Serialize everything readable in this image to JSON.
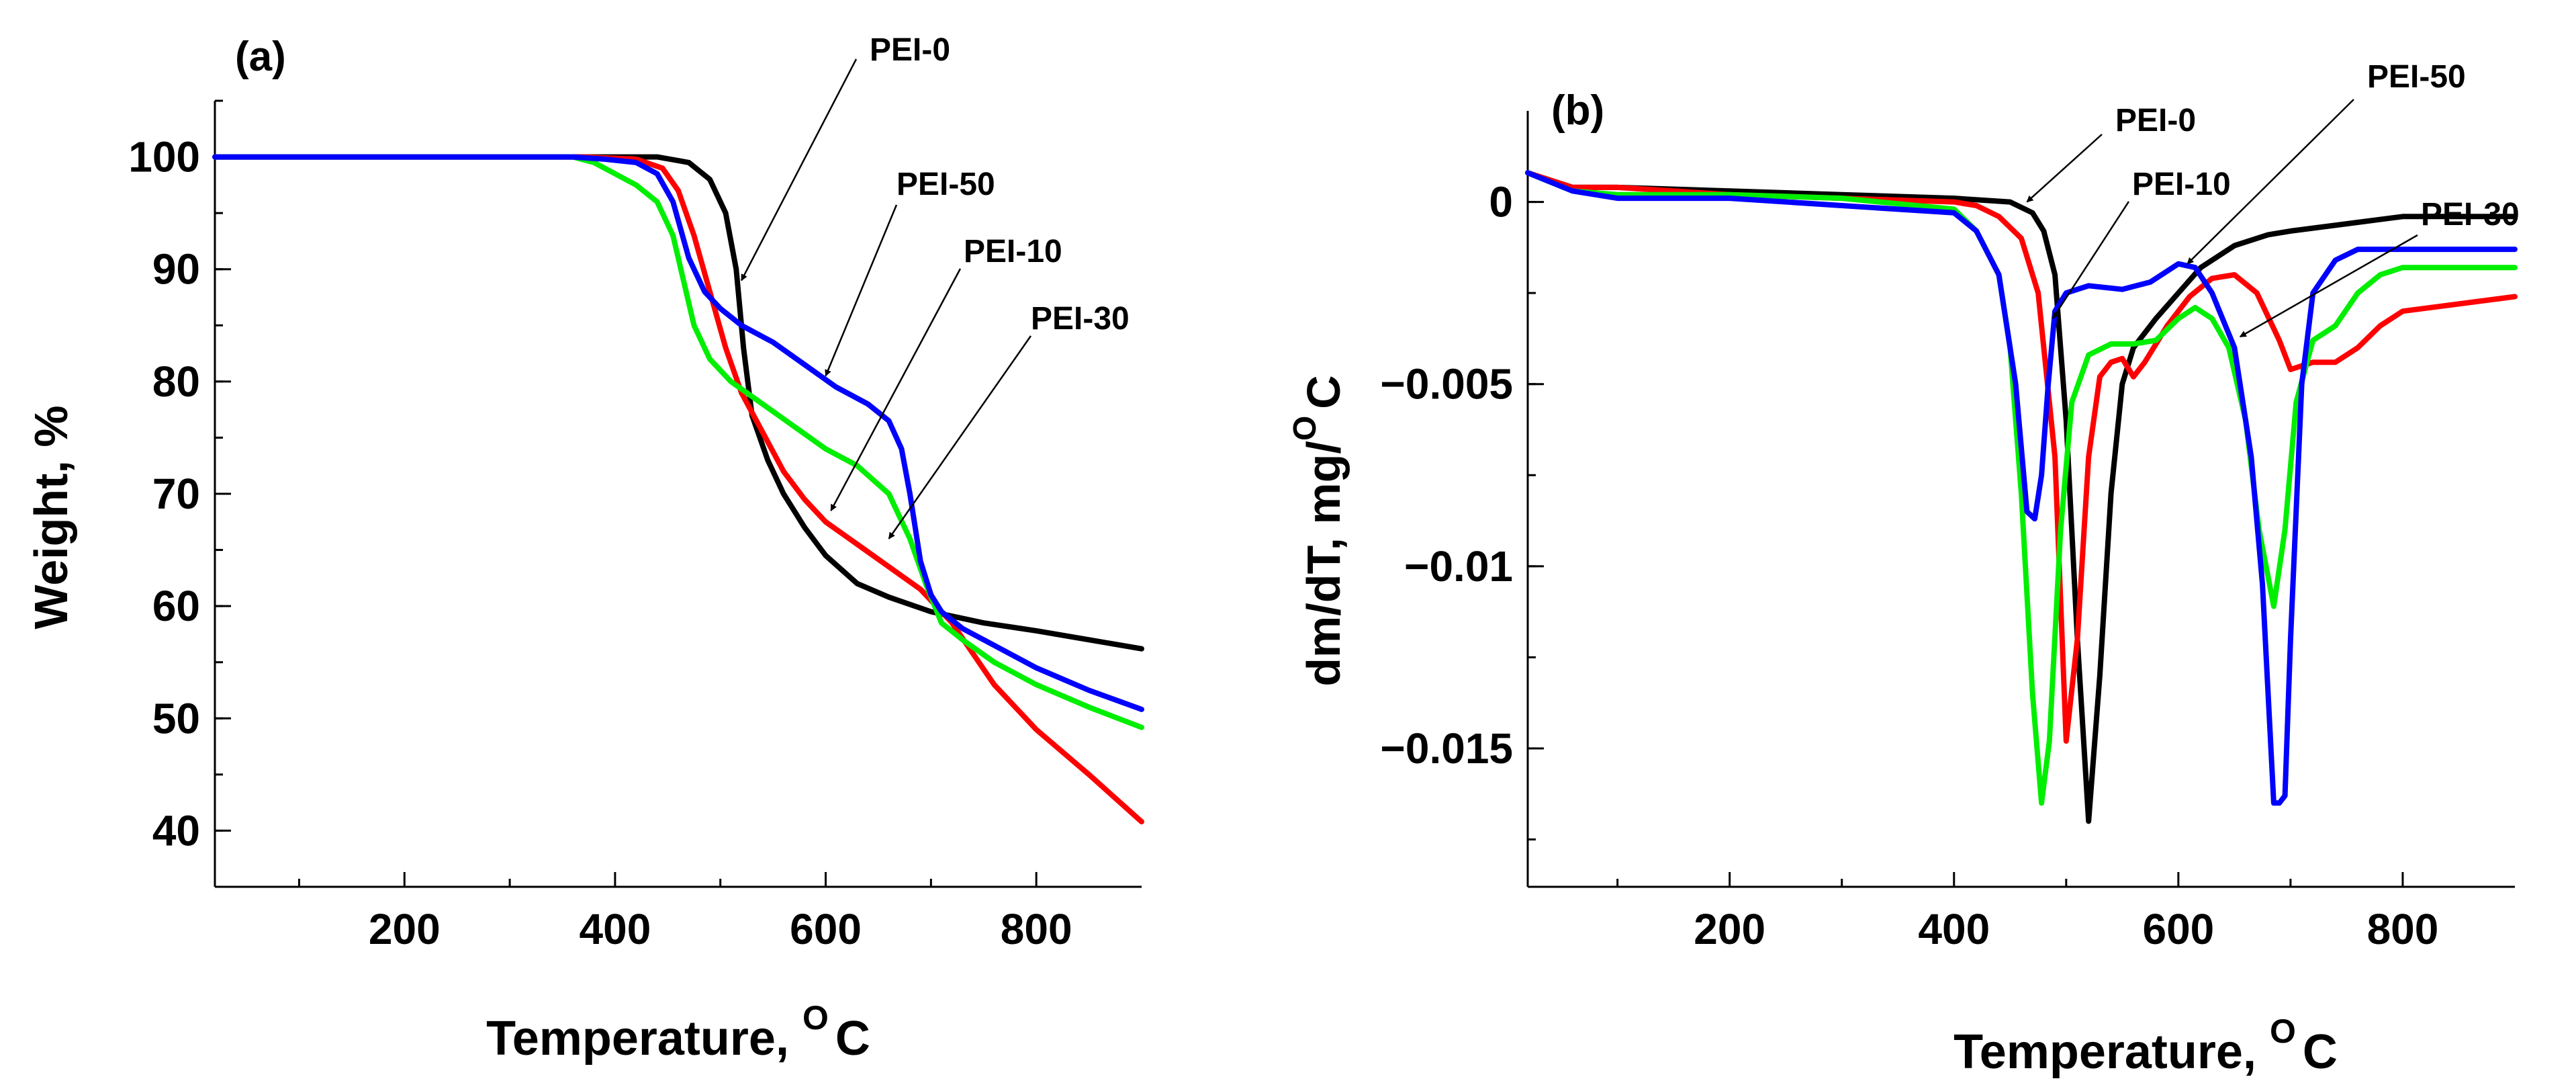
{
  "colors": {
    "PEI-0": "#000000",
    "PEI-10": "#ff0000",
    "PEI-30": "#00ee00",
    "PEI-50": "#0000ff"
  },
  "chart_data": [
    {
      "type": "line",
      "panel_label": "(a)",
      "xlabel": "Temperature, ",
      "xlabel_unit_sup": "O",
      "xlabel_unit": "C",
      "ylabel": "Weight, %",
      "xlim": [
        20,
        900
      ],
      "ylim": [
        35,
        105
      ],
      "x_ticks": [
        200,
        400,
        600,
        800
      ],
      "x_tick_labels": [
        "200",
        "400",
        "600",
        "800"
      ],
      "y_ticks": [
        40,
        50,
        60,
        70,
        80,
        90,
        100
      ],
      "y_tick_labels": [
        "40",
        "50",
        "60",
        "70",
        "80",
        "90",
        "100"
      ],
      "series": [
        {
          "name": "PEI-0",
          "x": [
            20,
            300,
            370,
            440,
            470,
            490,
            505,
            515,
            522,
            530,
            545,
            560,
            580,
            600,
            630,
            660,
            700,
            750,
            800,
            850,
            900
          ],
          "y": [
            100,
            100,
            100,
            100,
            99.5,
            98,
            95,
            90,
            83,
            77,
            73,
            70,
            67,
            64.5,
            62,
            60.8,
            59.5,
            58.5,
            57.8,
            57,
            56.2
          ]
        },
        {
          "name": "PEI-10",
          "x": [
            20,
            300,
            370,
            420,
            445,
            460,
            475,
            490,
            505,
            520,
            540,
            560,
            580,
            600,
            630,
            660,
            690,
            720,
            760,
            800,
            850,
            900
          ],
          "y": [
            100,
            100,
            100,
            99.8,
            99,
            97,
            93,
            88,
            83,
            79,
            75.5,
            72,
            69.5,
            67.5,
            65.5,
            63.5,
            61.5,
            58.5,
            53,
            49,
            45,
            40.8
          ]
        },
        {
          "name": "PEI-30",
          "x": [
            20,
            300,
            360,
            380,
            400,
            420,
            440,
            455,
            465,
            475,
            490,
            510,
            540,
            570,
            600,
            630,
            660,
            680,
            695,
            710,
            730,
            760,
            800,
            850,
            900
          ],
          "y": [
            100,
            100,
            100,
            99.5,
            98.5,
            97.5,
            96,
            93,
            89,
            85,
            82,
            80,
            78,
            76,
            74,
            72.5,
            70,
            66,
            62,
            58.5,
            57,
            55,
            53,
            51,
            49.2
          ]
        },
        {
          "name": "PEI-50",
          "x": [
            20,
            300,
            360,
            390,
            420,
            440,
            455,
            470,
            485,
            500,
            520,
            550,
            580,
            610,
            640,
            660,
            672,
            680,
            690,
            700,
            710,
            730,
            760,
            800,
            850,
            900
          ],
          "y": [
            100,
            100,
            100,
            99.8,
            99.5,
            98.5,
            96,
            91,
            88,
            86.5,
            85,
            83.5,
            81.5,
            79.5,
            78,
            76.5,
            74,
            70,
            64,
            61,
            59.5,
            58,
            56.5,
            54.5,
            52.5,
            50.8
          ]
        }
      ],
      "annotations": [
        {
          "label": "PEI-0",
          "series": "PEI-0",
          "point": [
            520,
            89
          ]
        },
        {
          "label": "PEI-50",
          "series": "PEI-50",
          "point": [
            600,
            80.5
          ]
        },
        {
          "label": "PEI-10",
          "series": "PEI-10",
          "point": [
            605,
            68.5
          ]
        },
        {
          "label": "PEI-30",
          "series": "PEI-30",
          "point": [
            660,
            66
          ]
        }
      ]
    },
    {
      "type": "line",
      "panel_label": "(b)",
      "xlabel": "Temperature, ",
      "xlabel_unit_sup": "O",
      "xlabel_unit": "C",
      "ylabel": "dm/dT, mg/",
      "ylabel_unit_sup": "O",
      "ylabel_unit": "C",
      "xlim": [
        20,
        900
      ],
      "ylim": [
        -0.0188,
        0.0025
      ],
      "x_ticks": [
        200,
        400,
        600,
        800
      ],
      "x_tick_labels": [
        "200",
        "400",
        "600",
        "800"
      ],
      "y_ticks": [
        0,
        -0.005,
        -0.01,
        -0.015
      ],
      "y_tick_labels": [
        "0",
        "−0.005",
        "−0.01",
        "−0.015"
      ],
      "series": [
        {
          "name": "PEI-0",
          "x": [
            20,
            60,
            100,
            200,
            300,
            400,
            450,
            470,
            480,
            490,
            500,
            510,
            520,
            530,
            540,
            550,
            560,
            580,
            600,
            620,
            650,
            680,
            700,
            750,
            800,
            850,
            900
          ],
          "y": [
            0.0008,
            0.0004,
            0.0004,
            0.0003,
            0.0002,
            0.0001,
            0,
            -0.0003,
            -0.0008,
            -0.002,
            -0.006,
            -0.012,
            -0.017,
            -0.013,
            -0.008,
            -0.005,
            -0.004,
            -0.0032,
            -0.0025,
            -0.0018,
            -0.0012,
            -0.0009,
            -0.0008,
            -0.0006,
            -0.0004,
            -0.0004,
            -0.0004
          ]
        },
        {
          "name": "PEI-10",
          "x": [
            20,
            60,
            100,
            200,
            300,
            400,
            420,
            440,
            460,
            475,
            490,
            500,
            510,
            520,
            530,
            540,
            550,
            560,
            570,
            590,
            610,
            630,
            650,
            670,
            690,
            700,
            710,
            720,
            740,
            760,
            780,
            800,
            850,
            900
          ],
          "y": [
            0.0008,
            0.0004,
            0.0004,
            0.0002,
            0.0001,
            0,
            -0.0001,
            -0.0004,
            -0.001,
            -0.0025,
            -0.007,
            -0.0148,
            -0.012,
            -0.007,
            -0.0048,
            -0.0044,
            -0.0043,
            -0.0048,
            -0.0044,
            -0.0034,
            -0.0026,
            -0.0021,
            -0.002,
            -0.0025,
            -0.0038,
            -0.0046,
            -0.0045,
            -0.0044,
            -0.0044,
            -0.004,
            -0.0034,
            -0.003,
            -0.0028,
            -0.0026
          ]
        },
        {
          "name": "PEI-30",
          "x": [
            20,
            60,
            100,
            200,
            300,
            400,
            420,
            440,
            450,
            460,
            470,
            478,
            485,
            495,
            505,
            520,
            540,
            560,
            580,
            600,
            615,
            630,
            645,
            660,
            672,
            685,
            695,
            705,
            720,
            740,
            760,
            780,
            800,
            850,
            900
          ],
          "y": [
            0.0008,
            0.0003,
            0.0002,
            0.0002,
            0.0001,
            -0.0002,
            -0.0008,
            -0.002,
            -0.004,
            -0.008,
            -0.0135,
            -0.0165,
            -0.0148,
            -0.009,
            -0.0055,
            -0.0042,
            -0.0039,
            -0.0039,
            -0.0038,
            -0.0032,
            -0.0029,
            -0.0032,
            -0.004,
            -0.006,
            -0.009,
            -0.0111,
            -0.009,
            -0.0055,
            -0.0038,
            -0.0034,
            -0.0025,
            -0.002,
            -0.0018,
            -0.0018,
            -0.0018
          ]
        },
        {
          "name": "PEI-50",
          "x": [
            20,
            60,
            100,
            200,
            300,
            400,
            420,
            440,
            455,
            465,
            472,
            478,
            484,
            490,
            500,
            520,
            550,
            575,
            600,
            615,
            630,
            650,
            665,
            675,
            680,
            685,
            690,
            695,
            700,
            710,
            720,
            740,
            760,
            800,
            850,
            900
          ],
          "y": [
            0.0008,
            0.0003,
            0.0001,
            0.0001,
            -0.0001,
            -0.0003,
            -0.0008,
            -0.002,
            -0.005,
            -0.0085,
            -0.0087,
            -0.0075,
            -0.005,
            -0.003,
            -0.0025,
            -0.0023,
            -0.0024,
            -0.0022,
            -0.0017,
            -0.0018,
            -0.0025,
            -0.004,
            -0.007,
            -0.0105,
            -0.0135,
            -0.0165,
            -0.0165,
            -0.0163,
            -0.012,
            -0.005,
            -0.0025,
            -0.0016,
            -0.0013,
            -0.0013,
            -0.0013,
            -0.0013
          ]
        }
      ],
      "annotations": [
        {
          "label": "PEI-0",
          "series": "PEI-0",
          "point": [
            465,
            0
          ]
        },
        {
          "label": "PEI-10",
          "series": "PEI-10",
          "point": [
            488,
            -0.0032
          ]
        },
        {
          "label": "PEI-50",
          "series": "PEI-50",
          "point": [
            608,
            -0.0017
          ]
        },
        {
          "label": "PEI-30",
          "series": "PEI-30",
          "point": [
            655,
            -0.0037
          ]
        }
      ]
    }
  ]
}
